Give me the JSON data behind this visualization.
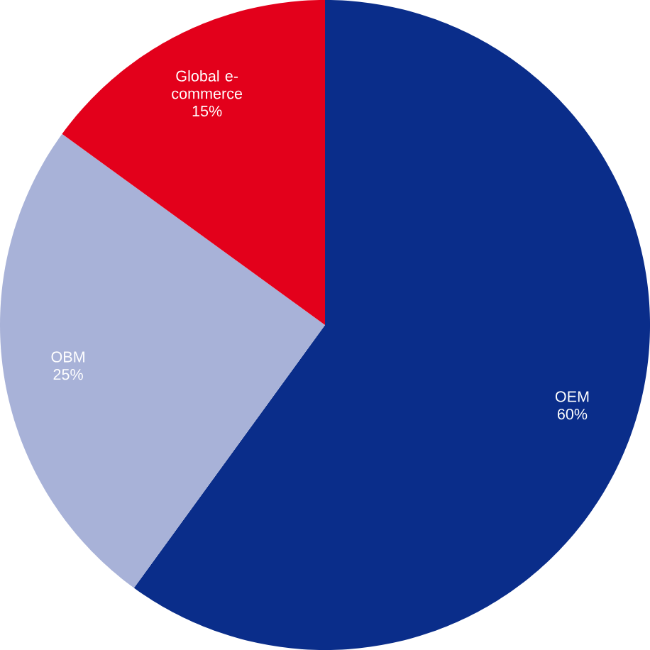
{
  "chart_data": {
    "type": "pie",
    "categories": [
      "OEM",
      "OBM",
      "Global e-commerce"
    ],
    "values": [
      60,
      25,
      15
    ],
    "colors": [
      "#0a2d8a",
      "#a8b2d8",
      "#e3001b"
    ],
    "value_labels": [
      "60%",
      "25%",
      "15%"
    ]
  }
}
